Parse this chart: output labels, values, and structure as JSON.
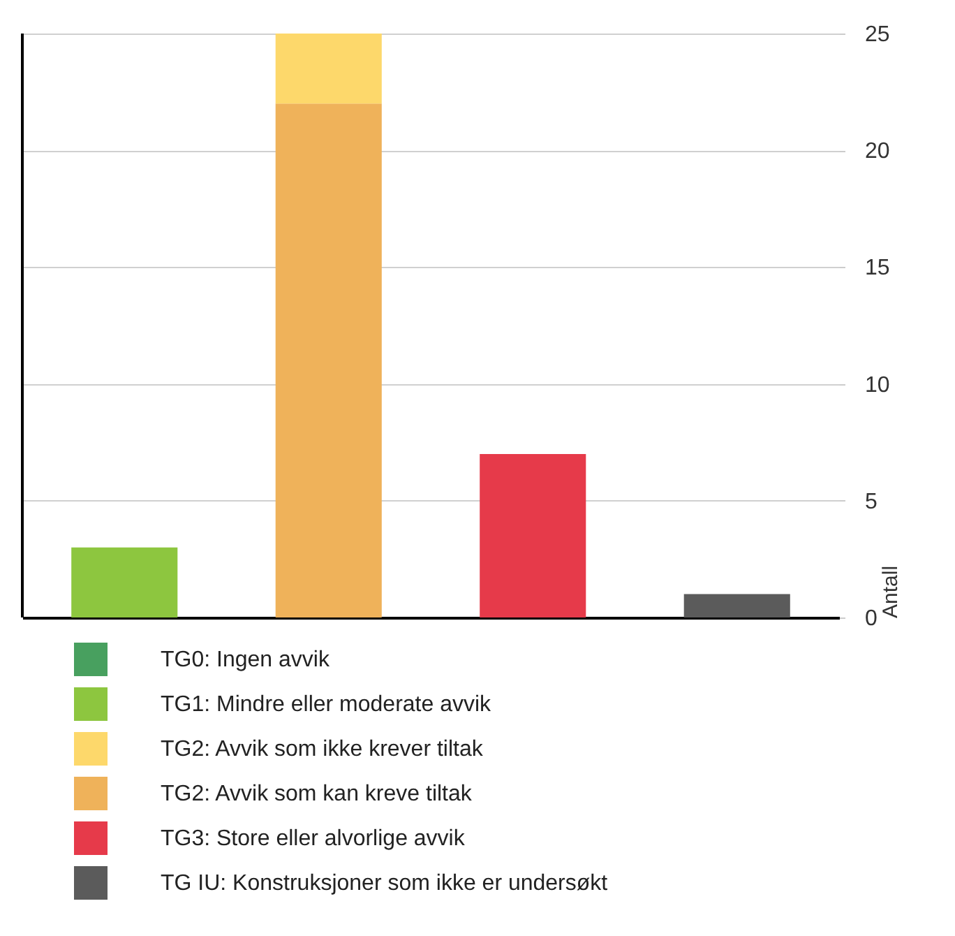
{
  "chart_data": {
    "type": "bar",
    "stacked": true,
    "ylabel": "Antall",
    "categories": [
      null,
      null,
      null,
      null
    ],
    "series": [
      {
        "name": "TG IU: Konstruksjoner som ikke er undersøkt",
        "color": "#5b5b5b",
        "values": [
          0,
          0,
          0,
          1
        ]
      },
      {
        "name": "TG3: Store eller alvorlige avvik",
        "color": "#e63a4a",
        "values": [
          0,
          0,
          7,
          0
        ]
      },
      {
        "name": "TG2: Avvik som kan kreve tiltak",
        "color": "#efb25a",
        "values": [
          0,
          22,
          0,
          0
        ]
      },
      {
        "name": "TG2: Avvik som ikke krever tiltak",
        "color": "#fdd86b",
        "values": [
          0,
          3,
          0,
          0
        ]
      },
      {
        "name": "TG1: Mindre eller moderate avvik",
        "color": "#8dc63f",
        "values": [
          3,
          0,
          0,
          0
        ]
      },
      {
        "name": "TG0: Ingen avvik",
        "color": "#48a05f",
        "values": [
          0,
          0,
          0,
          0
        ]
      }
    ],
    "ylim": [
      0,
      25
    ],
    "yticks": [
      0,
      5,
      10,
      15,
      20,
      25
    ],
    "grid": "y",
    "legend": "bottom left"
  }
}
